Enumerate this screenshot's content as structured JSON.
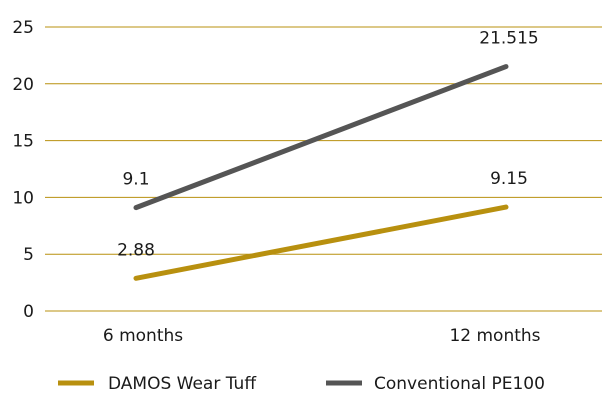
{
  "chart_data": {
    "type": "line",
    "categories": [
      "6 months",
      "12 months"
    ],
    "series": [
      {
        "name": "DAMOS Wear Tuff",
        "values": [
          2.88,
          9.15
        ],
        "color": "#B8900F"
      },
      {
        "name": "Conventional PE100",
        "values": [
          9.1,
          21.515
        ],
        "color": "#555555"
      }
    ],
    "ylim": [
      0,
      25
    ],
    "yticks": [
      0,
      5,
      10,
      15,
      20,
      25
    ],
    "grid": "horizontal",
    "grid_color": "#B8900F",
    "legend_position": "bottom"
  }
}
